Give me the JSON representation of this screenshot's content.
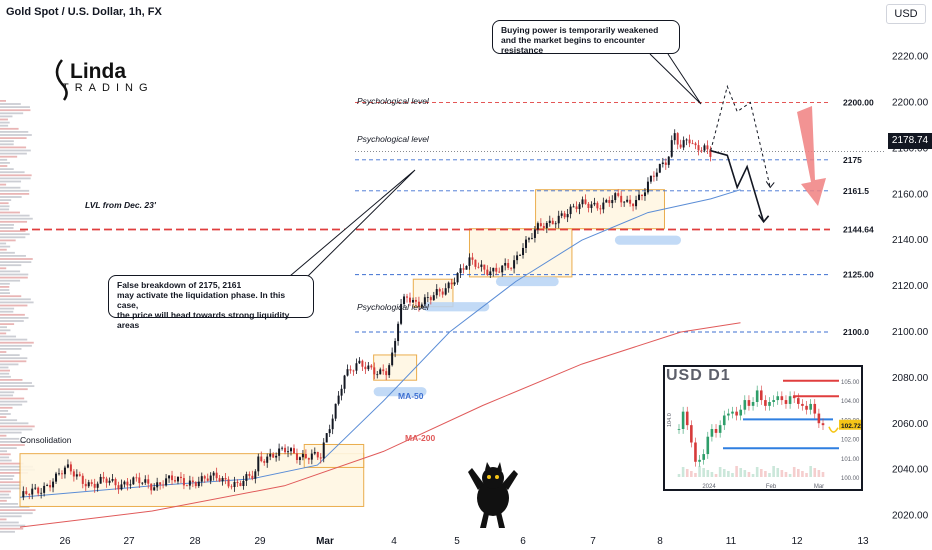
{
  "header": {
    "title": "Gold Spot / U.S. Dollar, 1h, FX",
    "currency_button": "USD",
    "current_price": "2178.74"
  },
  "logo": {
    "line1": "Linda",
    "line2": "TRADING"
  },
  "colors": {
    "up": "#131722",
    "down": "#d63a3a",
    "ma50": "#5b8dd6",
    "ma200": "#e05a5a",
    "zone_border": "#e8a43a",
    "zone_fill": "#fff7e3",
    "liquidity": "#b7d3f5",
    "arrow_big": "#f08080",
    "dashed_red": "#e03e3e",
    "dashed_blue": "#3d6fd1"
  },
  "annotations": {
    "callout_top": [
      "Buying power is temporarily weakened",
      "and the market begins to encounter resistance"
    ],
    "callout_left": [
      "False breakdown of 2175, 2161",
      "may activate the liquidation phase. In this case,",
      " the price will head towards strong liquidity areas"
    ],
    "psych_1": "Psychological level",
    "psych_2": "Psychological level",
    "psych_3": "Psychological level",
    "lvl_dec": "LVL from Dec. 23'",
    "consolidation": "Consolidation",
    "ma50": "MA-50",
    "ma200": "MA-200",
    "inset_title": "USD  D1"
  },
  "chart_data": {
    "type": "line",
    "title": "Gold Spot / U.S. Dollar, 1h, FX",
    "x_ticks": [
      "26",
      "27",
      "28",
      "29",
      "Mar",
      "4",
      "5",
      "6",
      "7",
      "8",
      "11",
      "12",
      "13"
    ],
    "y_ticks": [
      2020,
      2040,
      2060,
      2080,
      2100,
      2120,
      2140,
      2160,
      2180,
      2200,
      2220
    ],
    "ylim": [
      2012,
      2232
    ],
    "levels": [
      {
        "label": "2200.00",
        "value": 2200.0,
        "style": "red-dashed"
      },
      {
        "label": "2175",
        "value": 2175,
        "style": "blue-dashed"
      },
      {
        "label": "2161.5",
        "value": 2161.5,
        "style": "blue-dashed"
      },
      {
        "label": "2144.64",
        "value": 2144.64,
        "style": "red-dashed-thick"
      },
      {
        "label": "2125.00",
        "value": 2125.0,
        "style": "blue-dashed"
      },
      {
        "label": "2100.0",
        "value": 2100.0,
        "style": "blue-dashed"
      }
    ],
    "price_path": [
      [
        0.0,
        2028
      ],
      [
        0.3,
        2031
      ],
      [
        0.5,
        2036
      ],
      [
        0.7,
        2040
      ],
      [
        0.9,
        2037
      ],
      [
        1.1,
        2033
      ],
      [
        1.3,
        2035
      ],
      [
        1.5,
        2034
      ],
      [
        1.7,
        2035
      ],
      [
        2.0,
        2033
      ],
      [
        2.2,
        2036
      ],
      [
        2.5,
        2034
      ],
      [
        2.7,
        2036
      ],
      [
        3.0,
        2036
      ],
      [
        3.3,
        2034
      ],
      [
        3.55,
        2037
      ],
      [
        3.6,
        2044
      ],
      [
        3.8,
        2047
      ],
      [
        4.0,
        2048
      ],
      [
        4.2,
        2046
      ],
      [
        4.4,
        2047
      ],
      [
        4.55,
        2045
      ],
      [
        4.6,
        2050
      ],
      [
        4.75,
        2065
      ],
      [
        4.9,
        2082
      ],
      [
        5.1,
        2085
      ],
      [
        5.3,
        2084
      ],
      [
        5.55,
        2083
      ],
      [
        5.65,
        2090
      ],
      [
        5.75,
        2110
      ],
      [
        5.85,
        2116
      ],
      [
        6.0,
        2113
      ],
      [
        6.2,
        2114
      ],
      [
        6.4,
        2118
      ],
      [
        6.6,
        2125
      ],
      [
        6.8,
        2130
      ],
      [
        7.0,
        2128
      ],
      [
        7.2,
        2127
      ],
      [
        7.45,
        2128
      ],
      [
        7.6,
        2138
      ],
      [
        7.8,
        2145
      ],
      [
        8.0,
        2146
      ],
      [
        8.2,
        2152
      ],
      [
        8.5,
        2155
      ],
      [
        8.8,
        2156
      ],
      [
        9.0,
        2158
      ],
      [
        9.2,
        2156
      ],
      [
        9.4,
        2160
      ],
      [
        9.6,
        2168
      ],
      [
        9.8,
        2176
      ],
      [
        9.9,
        2188
      ],
      [
        10.0,
        2180
      ],
      [
        10.1,
        2184
      ],
      [
        10.2,
        2179
      ],
      [
        10.35,
        2181
      ],
      [
        10.45,
        2178.74
      ]
    ],
    "ma50": [
      [
        0.0,
        2028
      ],
      [
        2.0,
        2033
      ],
      [
        3.5,
        2036
      ],
      [
        4.5,
        2042
      ],
      [
        5.5,
        2070
      ],
      [
        6.5,
        2100
      ],
      [
        7.5,
        2122
      ],
      [
        8.5,
        2140
      ],
      [
        9.5,
        2152
      ],
      [
        10.45,
        2158
      ],
      [
        10.9,
        2162
      ]
    ],
    "ma200": [
      [
        0.0,
        2015
      ],
      [
        2.0,
        2022
      ],
      [
        4.0,
        2033
      ],
      [
        5.5,
        2048
      ],
      [
        7.0,
        2068
      ],
      [
        8.5,
        2086
      ],
      [
        10.0,
        2100
      ],
      [
        10.9,
        2104
      ]
    ],
    "zones": [
      {
        "x0": 0.0,
        "x1": 5.2,
        "y0": 2024,
        "y1": 2047,
        "label": "Consolidation"
      },
      {
        "x0": 4.3,
        "x1": 5.2,
        "y0": 2041,
        "y1": 2051
      },
      {
        "x0": 5.35,
        "x1": 6.0,
        "y0": 2079,
        "y1": 2090
      },
      {
        "x0": 5.95,
        "x1": 6.55,
        "y0": 2111,
        "y1": 2123
      },
      {
        "x0": 6.8,
        "x1": 8.35,
        "y0": 2124,
        "y1": 2145
      },
      {
        "x0": 7.8,
        "x1": 9.75,
        "y0": 2145,
        "y1": 2162
      }
    ],
    "liquidity_zones": [
      {
        "x0": 5.35,
        "x1": 6.15,
        "y0": 2072,
        "y1": 2076
      },
      {
        "x0": 6.1,
        "x1": 7.1,
        "y0": 2109,
        "y1": 2113
      },
      {
        "x0": 7.2,
        "x1": 8.15,
        "y0": 2120,
        "y1": 2124
      },
      {
        "x0": 9.0,
        "x1": 10.0,
        "y0": 2138,
        "y1": 2142
      }
    ],
    "projection_solid": [
      [
        10.45,
        2179
      ],
      [
        10.7,
        2177
      ],
      [
        10.85,
        2163
      ],
      [
        11.0,
        2172
      ],
      [
        11.25,
        2148
      ]
    ],
    "projection_dashed": [
      [
        10.45,
        2179
      ],
      [
        10.7,
        2207
      ],
      [
        10.85,
        2196
      ],
      [
        11.05,
        2200
      ],
      [
        11.35,
        2163
      ]
    ],
    "inset": {
      "type": "line",
      "title": "USD  D1",
      "x_ticks": [
        "2024",
        "Feb",
        "Mar"
      ],
      "y_ticks": [
        "105.00",
        "104.00",
        "103.00",
        "102.00",
        "101.00",
        "100.00"
      ],
      "y_axis_label": "104.0",
      "current": "102.72",
      "ylim": [
        99.7,
        105.3
      ],
      "values": [
        102.5,
        103.4,
        102.7,
        101.8,
        100.8,
        100.9,
        101.2,
        102.1,
        102.5,
        102.3,
        102.7,
        103.2,
        103.3,
        103.4,
        103.2,
        103.5,
        104.0,
        103.7,
        103.9,
        104.5,
        104.0,
        103.7,
        103.9,
        104.0,
        104.2,
        104.0,
        103.8,
        104.2,
        104.1,
        103.8,
        103.7,
        103.5,
        103.8,
        103.3,
        102.8,
        102.7
      ]
    }
  }
}
